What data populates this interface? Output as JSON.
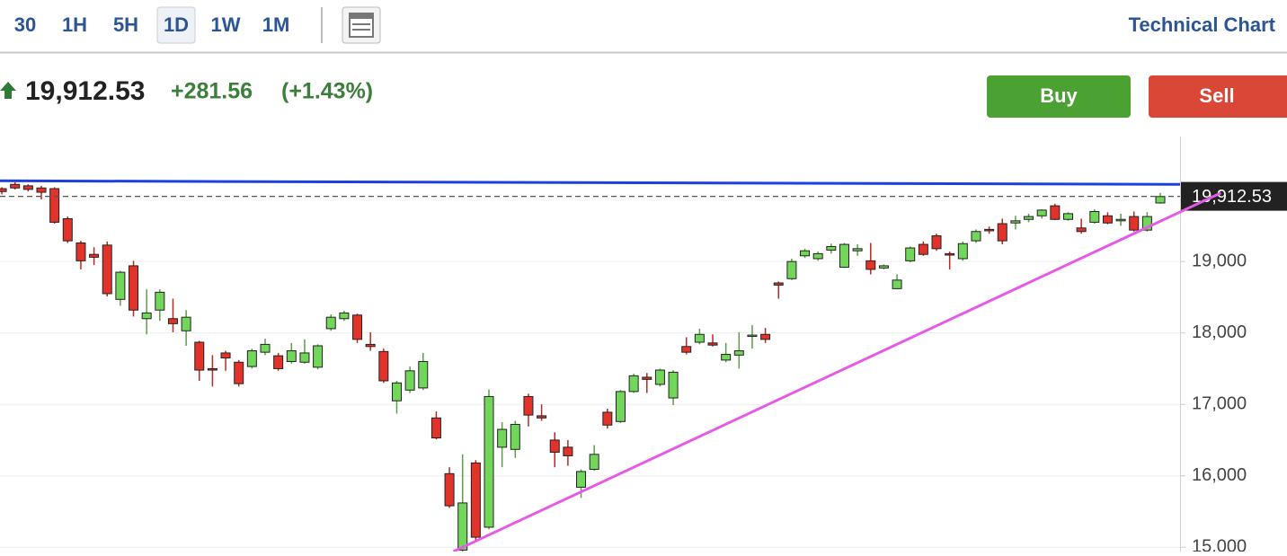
{
  "toolbar": {
    "buttons": [
      "30",
      "1H",
      "5H",
      "1D",
      "1W",
      "1M"
    ],
    "selected": 3,
    "link": "Technical Chart"
  },
  "quote": {
    "price": "19,912.53",
    "change": "+281.56",
    "change_pct": "(+1.43%)"
  },
  "actions": {
    "buy": "Buy",
    "sell": "Sell"
  },
  "chart_data": {
    "type": "candlestick",
    "up_color": "#72d65a",
    "down_color": "#e2332b",
    "xlim": [
      -0.14,
      89.5
    ],
    "ylim": [
      14940,
      20750
    ],
    "yticks": [
      {
        "value": 15000,
        "label": "15,000"
      },
      {
        "value": 16000,
        "label": "16,000"
      },
      {
        "value": 17000,
        "label": "17,000"
      },
      {
        "value": 18000,
        "label": "18,000"
      },
      {
        "value": 19000,
        "label": "19,000"
      }
    ],
    "grid": true,
    "last_price": {
      "value": 19912.53,
      "label": "19,912.53"
    },
    "open": [
      20020,
      20080,
      20060,
      20030,
      20020,
      19600,
      19260,
      19100,
      19230,
      18470,
      18940,
      18200,
      18320,
      18200,
      18030,
      17870,
      17500,
      17720,
      17590,
      17530,
      17730,
      17680,
      17600,
      17590,
      17520,
      18060,
      18200,
      18250,
      17840,
      17740,
      17050,
      17200,
      17230,
      16810,
      16030,
      14960,
      16180,
      15280,
      16400,
      16370,
      17110,
      16840,
      16500,
      16400,
      15840,
      16090,
      16890,
      16760,
      17180,
      17380,
      17280,
      17090,
      17810,
      17870,
      17860,
      17620,
      17690,
      17960,
      17980,
      18700,
      18760,
      19080,
      19040,
      19160,
      18920,
      19150,
      19010,
      18910,
      18620,
      19010,
      19240,
      19360,
      19110,
      19040,
      19290,
      19450,
      19530,
      19540,
      19590,
      19640,
      19780,
      19590,
      19470,
      19550,
      19640,
      19570,
      19630,
      19440,
      19820
    ],
    "high": [
      20040,
      20110,
      20080,
      20060,
      20040,
      19630,
      19290,
      19200,
      19280,
      18870,
      19010,
      18610,
      18610,
      18480,
      18320,
      17890,
      17690,
      17750,
      17620,
      17780,
      17920,
      17720,
      17860,
      17910,
      17840,
      18260,
      18310,
      18270,
      18010,
      17780,
      17330,
      17530,
      17720,
      16900,
      16120,
      16300,
      16220,
      17210,
      16750,
      16770,
      17150,
      17000,
      16610,
      16500,
      16090,
      16430,
      16940,
      17200,
      17430,
      17440,
      17500,
      17480,
      17940,
      18060,
      17980,
      17860,
      18010,
      18110,
      18070,
      18720,
      19040,
      19180,
      19140,
      19250,
      19260,
      19240,
      19260,
      18960,
      18820,
      19210,
      19280,
      19390,
      19140,
      19280,
      19450,
      19490,
      19600,
      19640,
      19670,
      19730,
      19810,
      19690,
      19600,
      19730,
      19690,
      19670,
      19700,
      19690,
      19960
    ],
    "low": [
      19940,
      20010,
      19980,
      19870,
      19530,
      19260,
      18890,
      18950,
      18510,
      18380,
      18230,
      17980,
      18170,
      18010,
      17820,
      17330,
      17250,
      17470,
      17250,
      17500,
      17690,
      17470,
      17570,
      17570,
      17490,
      18030,
      18170,
      17860,
      17750,
      17300,
      16870,
      17160,
      17200,
      16510,
      15550,
      14940,
      15080,
      15250,
      16120,
      16250,
      16690,
      16770,
      16120,
      16140,
      15690,
      16070,
      16660,
      16740,
      17160,
      17160,
      17250,
      16990,
      17700,
      17840,
      17810,
      17590,
      17500,
      17780,
      17860,
      18480,
      18740,
      19050,
      19010,
      19110,
      18910,
      19080,
      18820,
      18890,
      18610,
      18990,
      19080,
      19150,
      18890,
      19010,
      19260,
      19390,
      19240,
      19450,
      19550,
      19600,
      19580,
      19570,
      19390,
      19530,
      19520,
      19500,
      19420,
      19420,
      19810
    ],
    "close": [
      19980,
      20030,
      20010,
      19970,
      19550,
      19290,
      19010,
      19060,
      18550,
      18850,
      18320,
      18280,
      18570,
      18130,
      18220,
      17480,
      17480,
      17650,
      17290,
      17750,
      17840,
      17500,
      17750,
      17720,
      17820,
      18220,
      18280,
      17910,
      17810,
      17330,
      17300,
      17470,
      17600,
      16530,
      15580,
      15620,
      15140,
      17110,
      16650,
      16720,
      16850,
      16810,
      16330,
      16280,
      16060,
      16300,
      16710,
      17180,
      17400,
      17350,
      17480,
      17450,
      17730,
      17980,
      17830,
      17700,
      17750,
      17970,
      17910,
      18670,
      19000,
      19150,
      19110,
      19210,
      19240,
      19180,
      18890,
      18940,
      18740,
      19190,
      19100,
      19180,
      19090,
      19250,
      19420,
      19430,
      19290,
      19570,
      19630,
      19720,
      19590,
      19670,
      19420,
      19700,
      19540,
      19590,
      19440,
      19630,
      19910
    ],
    "trendlines": [
      {
        "color": "#1d3fe0",
        "x": [
          -0.14,
          89.5
        ],
        "values": [
          20130,
          20080
        ]
      },
      {
        "color": "#e65ae6",
        "x": [
          34.3,
          92.6
        ],
        "values": [
          14940,
          19960
        ]
      }
    ]
  }
}
